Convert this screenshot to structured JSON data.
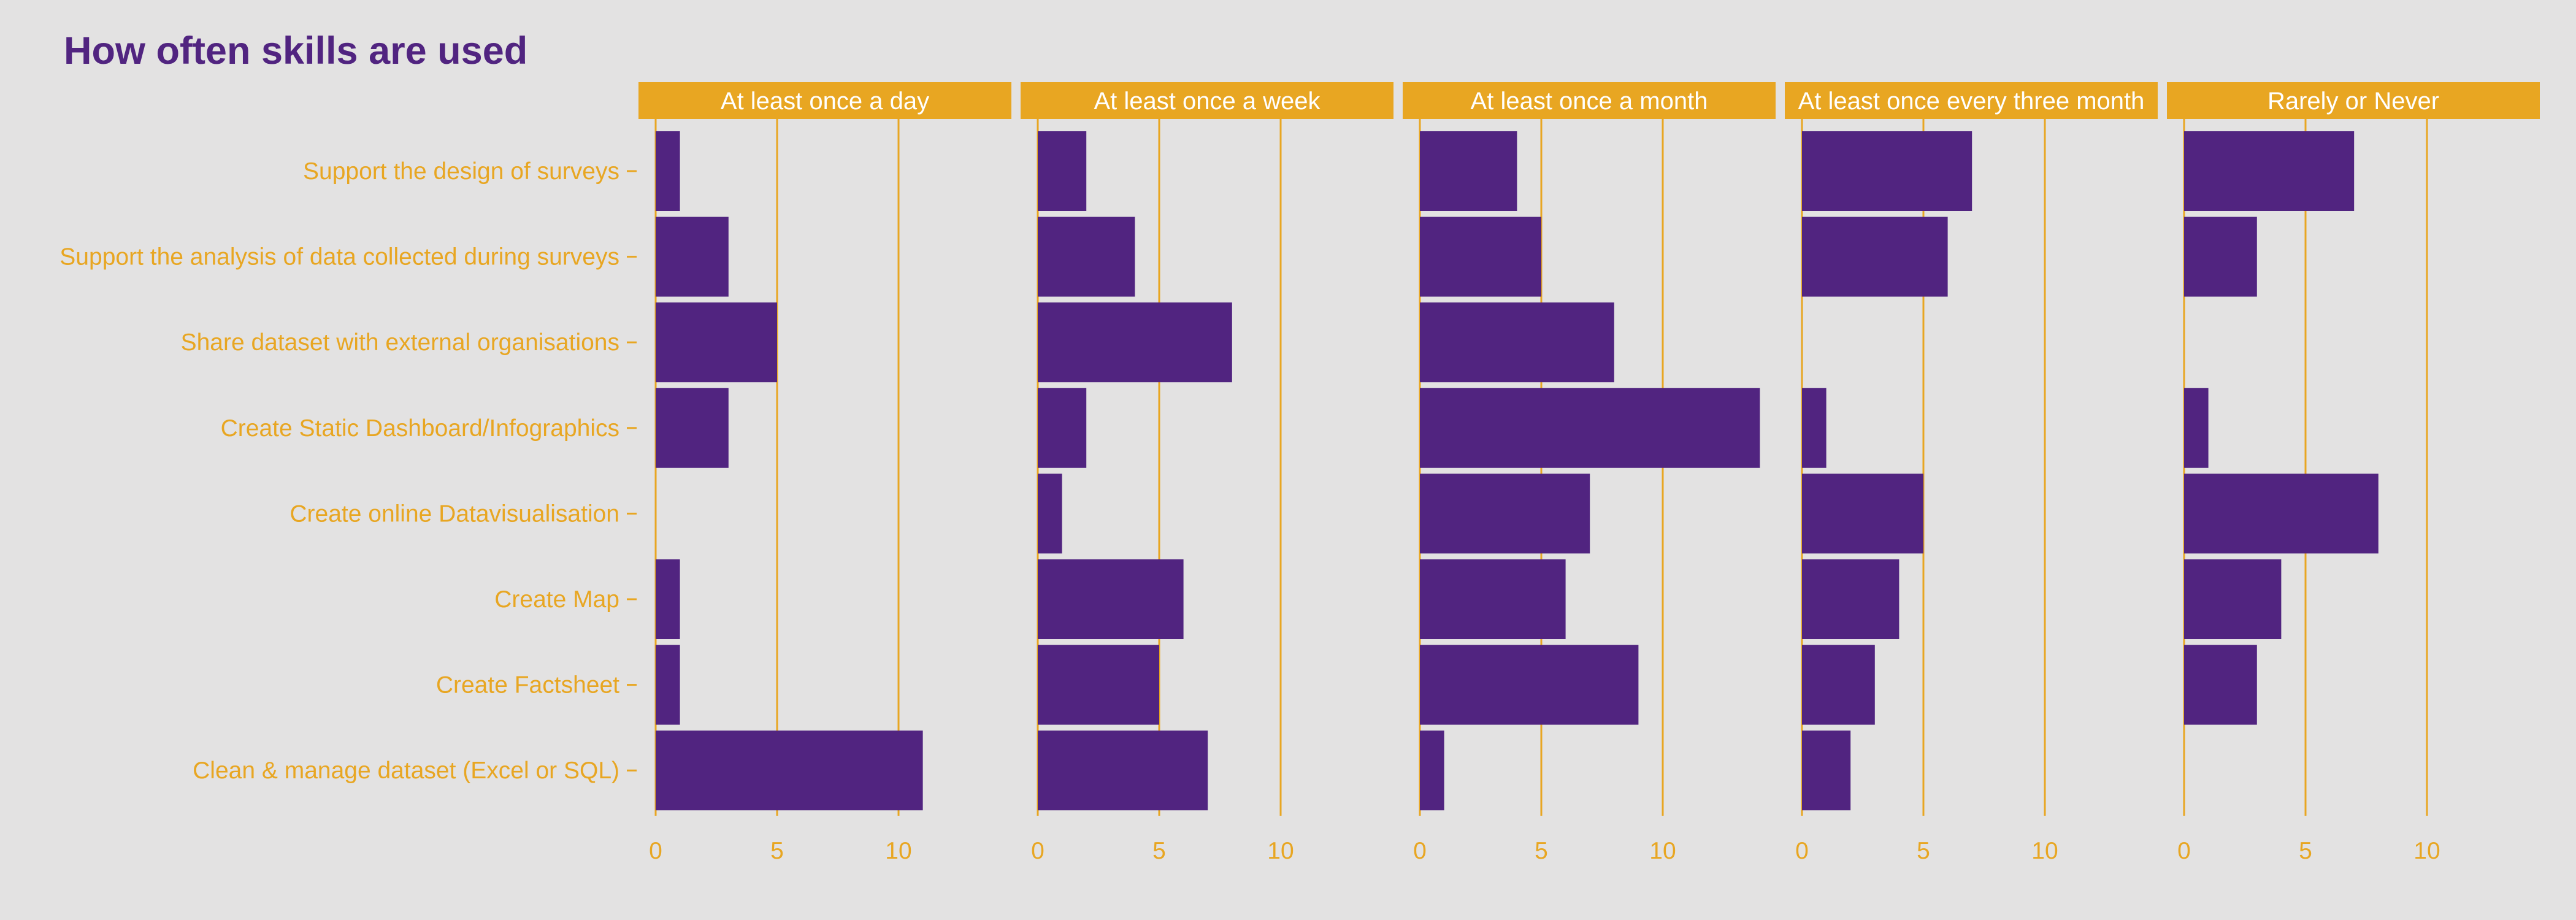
{
  "chart_data": {
    "type": "bar",
    "orientation": "horizontal",
    "faceted": true,
    "title": "How often skills are used",
    "categories": [
      "Support the design of surveys",
      "Support the analysis of data collected during surveys",
      "Share dataset with external organisations",
      "Create Static Dashboard/Infographics",
      "Create online Datavisualisation",
      "Create Map",
      "Create Factsheet",
      "Clean & manage dataset (Excel or SQL)"
    ],
    "panels": [
      {
        "name": "At least once a day",
        "values": [
          1,
          3,
          5,
          3,
          0,
          1,
          1,
          11
        ]
      },
      {
        "name": "At least once a week",
        "values": [
          2,
          4,
          8,
          2,
          1,
          6,
          5,
          7
        ]
      },
      {
        "name": "At least once a month",
        "values": [
          4,
          5,
          8,
          14,
          7,
          6,
          9,
          1
        ]
      },
      {
        "name": "At least once every three month",
        "values": [
          7,
          6,
          0,
          1,
          5,
          4,
          3,
          2
        ]
      },
      {
        "name": "Rarely or Never",
        "values": [
          7,
          3,
          0,
          1,
          8,
          4,
          3,
          0
        ]
      }
    ],
    "xticks": [
      0,
      5,
      10
    ],
    "xlim": [
      0,
      14.6
    ],
    "grid": true,
    "colors": {
      "bar": "#512480",
      "accent": "#e8a622",
      "background": "#e3e2e2",
      "strip_text": "#ffffff",
      "title": "#512480"
    }
  }
}
